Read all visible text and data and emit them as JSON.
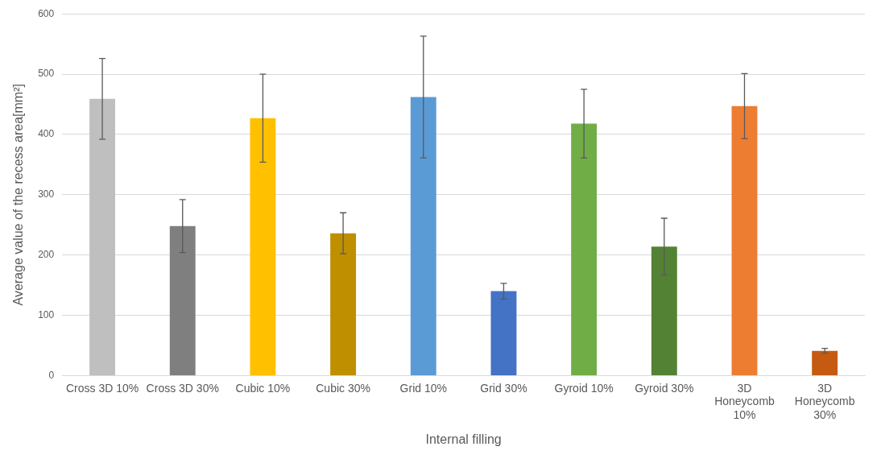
{
  "chart_data": {
    "type": "bar",
    "xlabel": "Internal filling",
    "ylabel": "Average value of the recess area[mm²]",
    "categories": [
      "Cross 3D 10%",
      "Cross 3D 30%",
      "Cubic 10%",
      "Cubic 30%",
      "Grid 10%",
      "Grid 30%",
      "Gyroid 10%",
      "Gyroid 30%",
      "3D Honeycomb 10%",
      "3D Honeycomb 30%"
    ],
    "values": [
      459,
      248,
      427,
      236,
      462,
      140,
      418,
      214,
      447,
      41
    ],
    "errors": [
      67,
      44,
      73,
      34,
      101,
      13,
      57,
      47,
      54,
      4
    ],
    "colors": [
      "#bfbfbf",
      "#7f7f7f",
      "#ffc000",
      "#bf8f00",
      "#5b9bd5",
      "#4472c4",
      "#70ad47",
      "#548235",
      "#ed7d31",
      "#c55a11"
    ],
    "ylim": [
      0,
      600
    ],
    "yticks": [
      0,
      100,
      200,
      300,
      400,
      500,
      600
    ],
    "grid": "y",
    "legend": false
  }
}
